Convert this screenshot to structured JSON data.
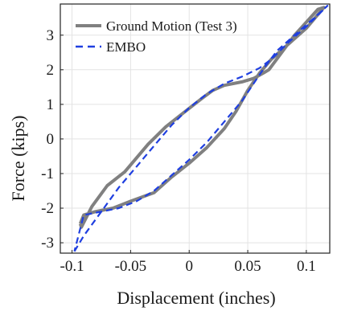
{
  "chart_data": {
    "type": "line",
    "xlabel": "Displacement (inches)",
    "ylabel": "Force (kips)",
    "xlim": [
      -0.11,
      0.12
    ],
    "ylim": [
      -3.3,
      3.9
    ],
    "x_ticks": [
      -0.1,
      -0.05,
      0,
      0.05,
      0.1
    ],
    "x_tick_labels": [
      "-0.1",
      "-0.05",
      "0",
      "0.05",
      "0.1"
    ],
    "y_ticks": [
      -3,
      -2,
      -1,
      0,
      1,
      2,
      3
    ],
    "y_tick_labels": [
      "-3",
      "-2",
      "-1",
      "0",
      "1",
      "2",
      "3"
    ],
    "grid": true,
    "legend_position": "top-left",
    "series": [
      {
        "name": "Ground Motion (Test 3)",
        "style": "solid",
        "color": "#808080",
        "x": [
          -0.093,
          -0.092,
          -0.083,
          -0.07,
          -0.055,
          -0.045,
          -0.035,
          -0.02,
          -0.005,
          0.01,
          0.02,
          0.03,
          0.045,
          0.055,
          0.063,
          0.068,
          0.09,
          0.11,
          0.115,
          0.1,
          0.085,
          0.07,
          0.06,
          0.05,
          0.04,
          0.03,
          0.015,
          0.0,
          -0.015,
          -0.03,
          -0.05,
          -0.065,
          -0.08,
          -0.09,
          -0.093
        ],
        "y": [
          -2.45,
          -2.55,
          -1.95,
          -1.35,
          -0.95,
          -0.55,
          -0.15,
          0.35,
          0.75,
          1.15,
          1.4,
          1.55,
          1.65,
          1.75,
          1.9,
          2.0,
          3.0,
          3.75,
          3.8,
          3.2,
          2.75,
          2.3,
          1.9,
          1.4,
          0.8,
          0.3,
          -0.25,
          -0.7,
          -1.1,
          -1.55,
          -1.8,
          -2.0,
          -2.1,
          -2.2,
          -2.45
        ]
      },
      {
        "name": "EMBO",
        "style": "dashed",
        "color": "#1f3fe0",
        "x": [
          -0.098,
          -0.09,
          -0.075,
          -0.06,
          -0.045,
          -0.03,
          -0.015,
          0.0,
          0.015,
          0.03,
          0.045,
          0.06,
          0.07,
          0.085,
          0.1,
          0.118,
          0.105,
          0.09,
          0.075,
          0.065,
          0.055,
          0.045,
          0.03,
          0.015,
          0.0,
          -0.015,
          -0.03,
          -0.045,
          -0.06,
          -0.075,
          -0.09,
          -0.098
        ],
        "y": [
          -3.25,
          -2.8,
          -2.1,
          -1.4,
          -0.8,
          -0.2,
          0.4,
          0.9,
          1.3,
          1.6,
          1.8,
          2.05,
          2.3,
          2.8,
          3.25,
          3.85,
          3.45,
          3.0,
          2.55,
          2.1,
          1.6,
          1.1,
          0.5,
          -0.1,
          -0.6,
          -1.05,
          -1.5,
          -1.8,
          -2.0,
          -2.1,
          -2.2,
          -3.25
        ]
      }
    ]
  }
}
